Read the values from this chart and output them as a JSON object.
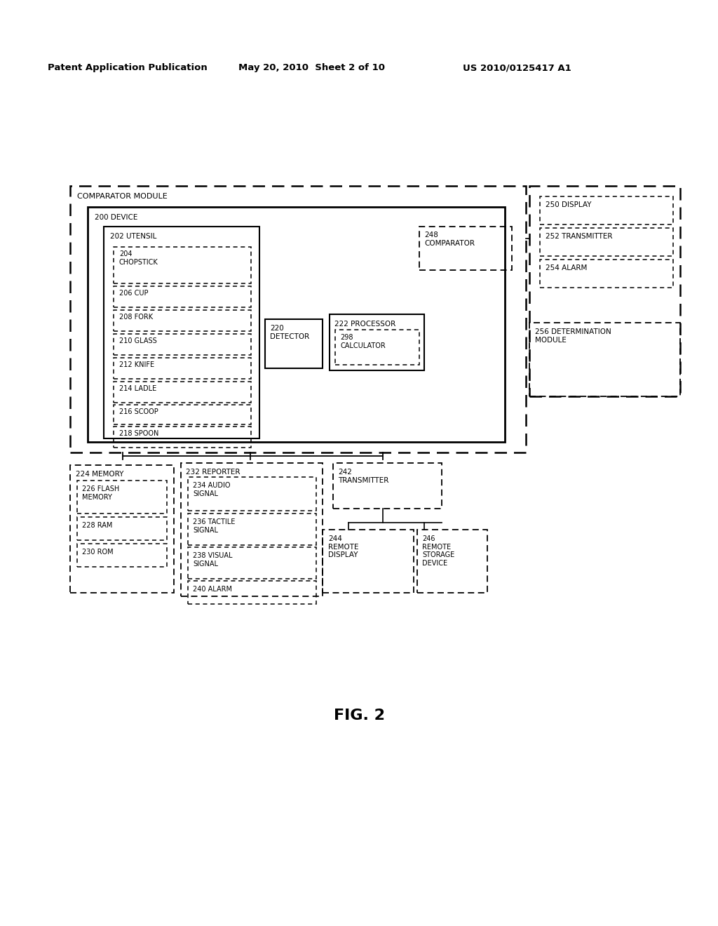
{
  "header_left": "Patent Application Publication",
  "header_mid": "May 20, 2010  Sheet 2 of 10",
  "header_right": "US 2010/0125417 A1",
  "figure_label": "FIG. 2",
  "bg_color": "#ffffff",
  "text_color": "#000000"
}
